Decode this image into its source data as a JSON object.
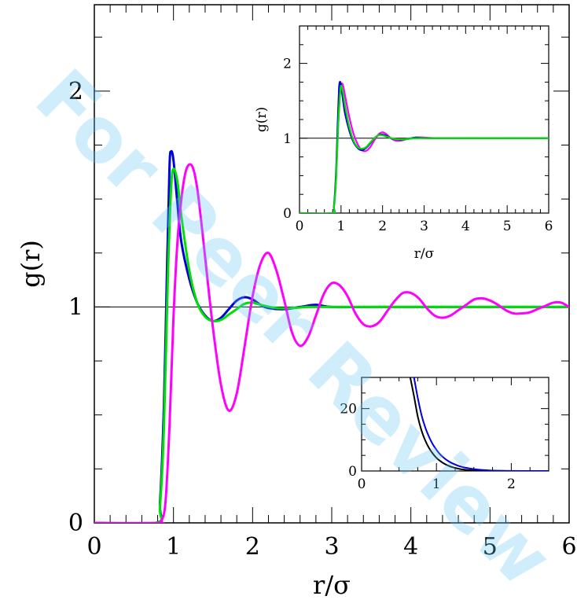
{
  "watermark": "For Peer Review",
  "chart_data": [
    {
      "type": "line",
      "xlabel": "r/σ",
      "ylabel": "g(r)",
      "xlim": [
        0,
        6
      ],
      "ylim": [
        0,
        2.4
      ],
      "x_ticks": [
        "0",
        "1",
        "2",
        "3",
        "4",
        "5",
        "6"
      ],
      "y_ticks": [
        "0",
        "1",
        "2"
      ],
      "reference_line": 1,
      "series": [
        {
          "color": "#0000dd",
          "x": [
            0,
            0.78,
            0.83,
            0.88,
            0.92,
            0.95,
            0.97,
            1.0,
            1.05,
            1.1,
            1.2,
            1.3,
            1.4,
            1.5,
            1.6,
            1.7,
            1.8,
            1.9,
            2.0,
            2.1,
            2.2,
            2.4,
            2.6,
            2.8,
            3.0,
            3.5,
            6.0
          ],
          "y": [
            0,
            0,
            0.1,
            0.55,
            1.2,
            1.65,
            1.72,
            1.68,
            1.48,
            1.3,
            1.13,
            1.02,
            0.96,
            0.935,
            0.95,
            0.99,
            1.03,
            1.045,
            1.035,
            1.01,
            0.995,
            0.99,
            1.0,
            1.01,
            1.0,
            1.0,
            1.0
          ]
        },
        {
          "color": "#00e000",
          "x": [
            0,
            0.78,
            0.83,
            0.88,
            0.93,
            0.97,
            1.0,
            1.05,
            1.1,
            1.2,
            1.3,
            1.4,
            1.5,
            1.6,
            1.7,
            1.8,
            1.9,
            2.0,
            2.1,
            2.3,
            2.5,
            2.7,
            3.0,
            6.0
          ],
          "y": [
            0,
            0,
            0.08,
            0.45,
            1.15,
            1.55,
            1.64,
            1.58,
            1.42,
            1.17,
            1.02,
            0.955,
            0.935,
            0.94,
            0.965,
            0.99,
            1.015,
            1.02,
            1.01,
            0.995,
            0.995,
            1.0,
            1.0,
            1.0
          ]
        },
        {
          "color": "#ff00ff",
          "x": [
            0,
            0.8,
            0.85,
            0.9,
            0.95,
            1.0,
            1.05,
            1.1,
            1.15,
            1.2,
            1.25,
            1.3,
            1.35,
            1.4,
            1.5,
            1.6,
            1.7,
            1.8,
            1.9,
            2.0,
            2.1,
            2.2,
            2.3,
            2.4,
            2.5,
            2.6,
            2.7,
            2.8,
            2.9,
            3.0,
            3.1,
            3.2,
            3.3,
            3.4,
            3.5,
            3.6,
            3.7,
            3.8,
            3.9,
            4.0,
            4.1,
            4.2,
            4.3,
            4.4,
            4.5,
            4.6,
            4.7,
            4.8,
            4.9,
            5.0,
            5.1,
            5.2,
            5.3,
            5.4,
            5.5,
            5.6,
            5.7,
            5.8,
            5.9,
            6.0
          ],
          "y": [
            0,
            0,
            0.01,
            0.1,
            0.45,
            0.95,
            1.3,
            1.5,
            1.62,
            1.66,
            1.64,
            1.55,
            1.4,
            1.23,
            0.9,
            0.64,
            0.52,
            0.6,
            0.82,
            1.05,
            1.2,
            1.25,
            1.17,
            1.03,
            0.88,
            0.82,
            0.86,
            0.96,
            1.06,
            1.11,
            1.1,
            1.05,
            0.97,
            0.92,
            0.91,
            0.93,
            0.98,
            1.03,
            1.065,
            1.065,
            1.04,
            0.995,
            0.96,
            0.95,
            0.96,
            0.985,
            1.01,
            1.035,
            1.04,
            1.03,
            1.01,
            0.985,
            0.97,
            0.97,
            0.975,
            0.99,
            1.005,
            1.02,
            1.02,
            1.0
          ]
        }
      ]
    },
    {
      "type": "line",
      "xlabel": "r/σ",
      "ylabel": "g(r)",
      "xlim": [
        0,
        6
      ],
      "ylim": [
        0,
        2.5
      ],
      "x_ticks": [
        "0",
        "1",
        "2",
        "3",
        "4",
        "5",
        "6"
      ],
      "y_ticks": [
        "0",
        "1",
        "2"
      ],
      "reference_line": 1,
      "series": [
        {
          "color": "#ff00ff",
          "x": [
            0,
            0.78,
            0.83,
            0.88,
            0.93,
            0.97,
            1.0,
            1.03,
            1.06,
            1.1,
            1.2,
            1.3,
            1.4,
            1.5,
            1.6,
            1.7,
            1.8,
            1.9,
            2.0,
            2.1,
            2.2,
            2.3,
            2.4,
            2.5,
            2.6,
            2.8,
            3.0,
            3.5,
            6.0
          ],
          "y": [
            0,
            0,
            0.08,
            0.45,
            1.15,
            1.55,
            1.7,
            1.73,
            1.68,
            1.56,
            1.28,
            1.06,
            0.92,
            0.84,
            0.83,
            0.88,
            0.97,
            1.05,
            1.08,
            1.05,
            1.0,
            0.97,
            0.965,
            0.975,
            0.99,
            1.01,
            1.01,
            1.0,
            1.0
          ]
        },
        {
          "color": "#0000dd",
          "x": [
            0,
            0.78,
            0.83,
            0.88,
            0.92,
            0.95,
            0.97,
            1.0,
            1.05,
            1.1,
            1.2,
            1.3,
            1.4,
            1.5,
            1.6,
            1.7,
            1.8,
            1.9,
            2.0,
            2.1,
            2.2,
            2.4,
            2.6,
            2.8,
            3.0,
            3.5,
            6.0
          ],
          "y": [
            0,
            0,
            0.1,
            0.55,
            1.2,
            1.65,
            1.75,
            1.71,
            1.5,
            1.32,
            1.1,
            0.95,
            0.87,
            0.84,
            0.87,
            0.93,
            1.0,
            1.04,
            1.05,
            1.03,
            1.0,
            0.98,
            0.99,
            1.01,
            1.0,
            1.0,
            1.0
          ]
        },
        {
          "color": "#00e000",
          "x": [
            0,
            0.78,
            0.83,
            0.88,
            0.93,
            0.97,
            1.0,
            1.05,
            1.1,
            1.2,
            1.3,
            1.4,
            1.5,
            1.6,
            1.7,
            1.8,
            1.9,
            2.0,
            2.1,
            2.3,
            2.5,
            2.7,
            3.0,
            6.0
          ],
          "y": [
            0,
            0,
            0.08,
            0.45,
            1.15,
            1.55,
            1.7,
            1.6,
            1.42,
            1.15,
            0.97,
            0.88,
            0.86,
            0.88,
            0.94,
            1.0,
            1.04,
            1.04,
            1.02,
            0.99,
            0.985,
            0.995,
            1.0,
            1.0
          ]
        }
      ]
    },
    {
      "type": "line",
      "xlim": [
        0,
        2.5
      ],
      "ylim": [
        0,
        30
      ],
      "x_ticks": [
        "0",
        "1",
        "2"
      ],
      "y_ticks": [
        "0",
        "20"
      ],
      "series": [
        {
          "color": "#000000",
          "x": [
            0.65,
            0.7,
            0.75,
            0.8,
            0.85,
            0.9,
            0.95,
            1.0,
            1.05,
            1.1,
            1.15,
            1.2,
            1.3,
            1.4,
            1.5,
            1.7,
            2.0,
            2.5
          ],
          "y": [
            30,
            24,
            17.5,
            13,
            9.8,
            7.4,
            5.6,
            4.2,
            3.2,
            2.4,
            1.8,
            1.3,
            0.7,
            0.35,
            0.15,
            0.04,
            0,
            0
          ]
        },
        {
          "color": "#0000dd",
          "x": [
            0.7,
            0.75,
            0.8,
            0.85,
            0.9,
            0.95,
            1.0,
            1.05,
            1.1,
            1.15,
            1.2,
            1.3,
            1.4,
            1.5,
            1.6,
            1.7,
            1.8,
            1.9,
            2.0,
            2.2,
            2.5
          ],
          "y": [
            30,
            23.5,
            18,
            14,
            11,
            8.6,
            6.8,
            5.3,
            4.2,
            3.3,
            2.6,
            1.6,
            1.0,
            0.6,
            0.35,
            0.2,
            0.1,
            0.05,
            0.02,
            0,
            0
          ]
        }
      ]
    }
  ]
}
